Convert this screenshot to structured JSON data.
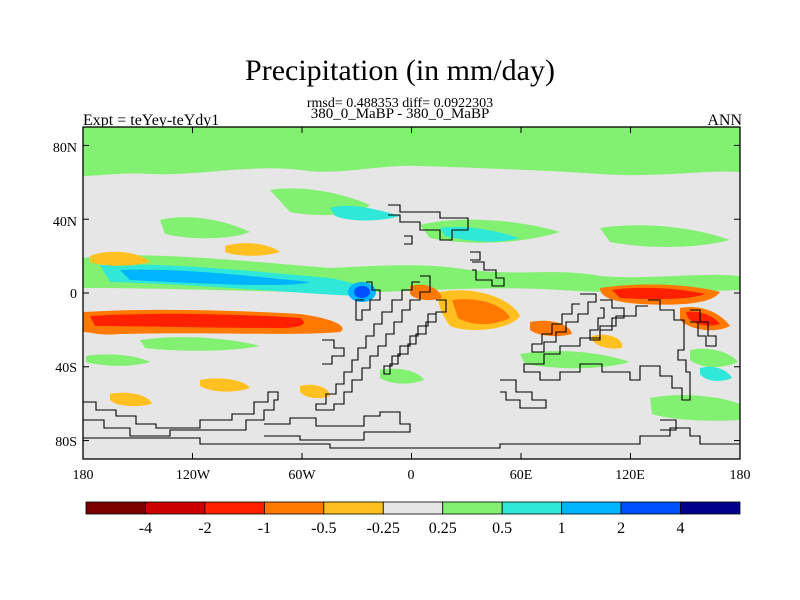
{
  "title": "Precipitation (in mm/day)",
  "stats": "rmsd= 0.488353 diff= 0.0922303",
  "subtitle": "380_0_MaBP - 380_0_MaBP",
  "expt_label": "Expt = teYey-teYdy1",
  "season": "ANN",
  "colors": {
    "background": "#e6e6e6",
    "bins": [
      "#7a0000",
      "#c80000",
      "#ff2000",
      "#ff7800",
      "#ffc020",
      "#e6e6e6",
      "#82f070",
      "#30e8d8",
      "#00b4ff",
      "#0050ff",
      "#00008c"
    ]
  },
  "chart_data": {
    "type": "heatmap",
    "title": "Precipitation (in mm/day)",
    "lat_ticks": [
      "80N",
      "40N",
      "0",
      "40S",
      "80S"
    ],
    "lon_ticks": [
      "180",
      "120W",
      "60W",
      "0",
      "60E",
      "120E",
      "180"
    ],
    "colorbar_labels": [
      "-4",
      "-2",
      "-1",
      "-0.5",
      "-0.25",
      "0.25",
      "0.5",
      "1",
      "2",
      "4"
    ],
    "lat_range": [
      -90,
      90
    ],
    "lon_range": [
      -180,
      180
    ]
  }
}
